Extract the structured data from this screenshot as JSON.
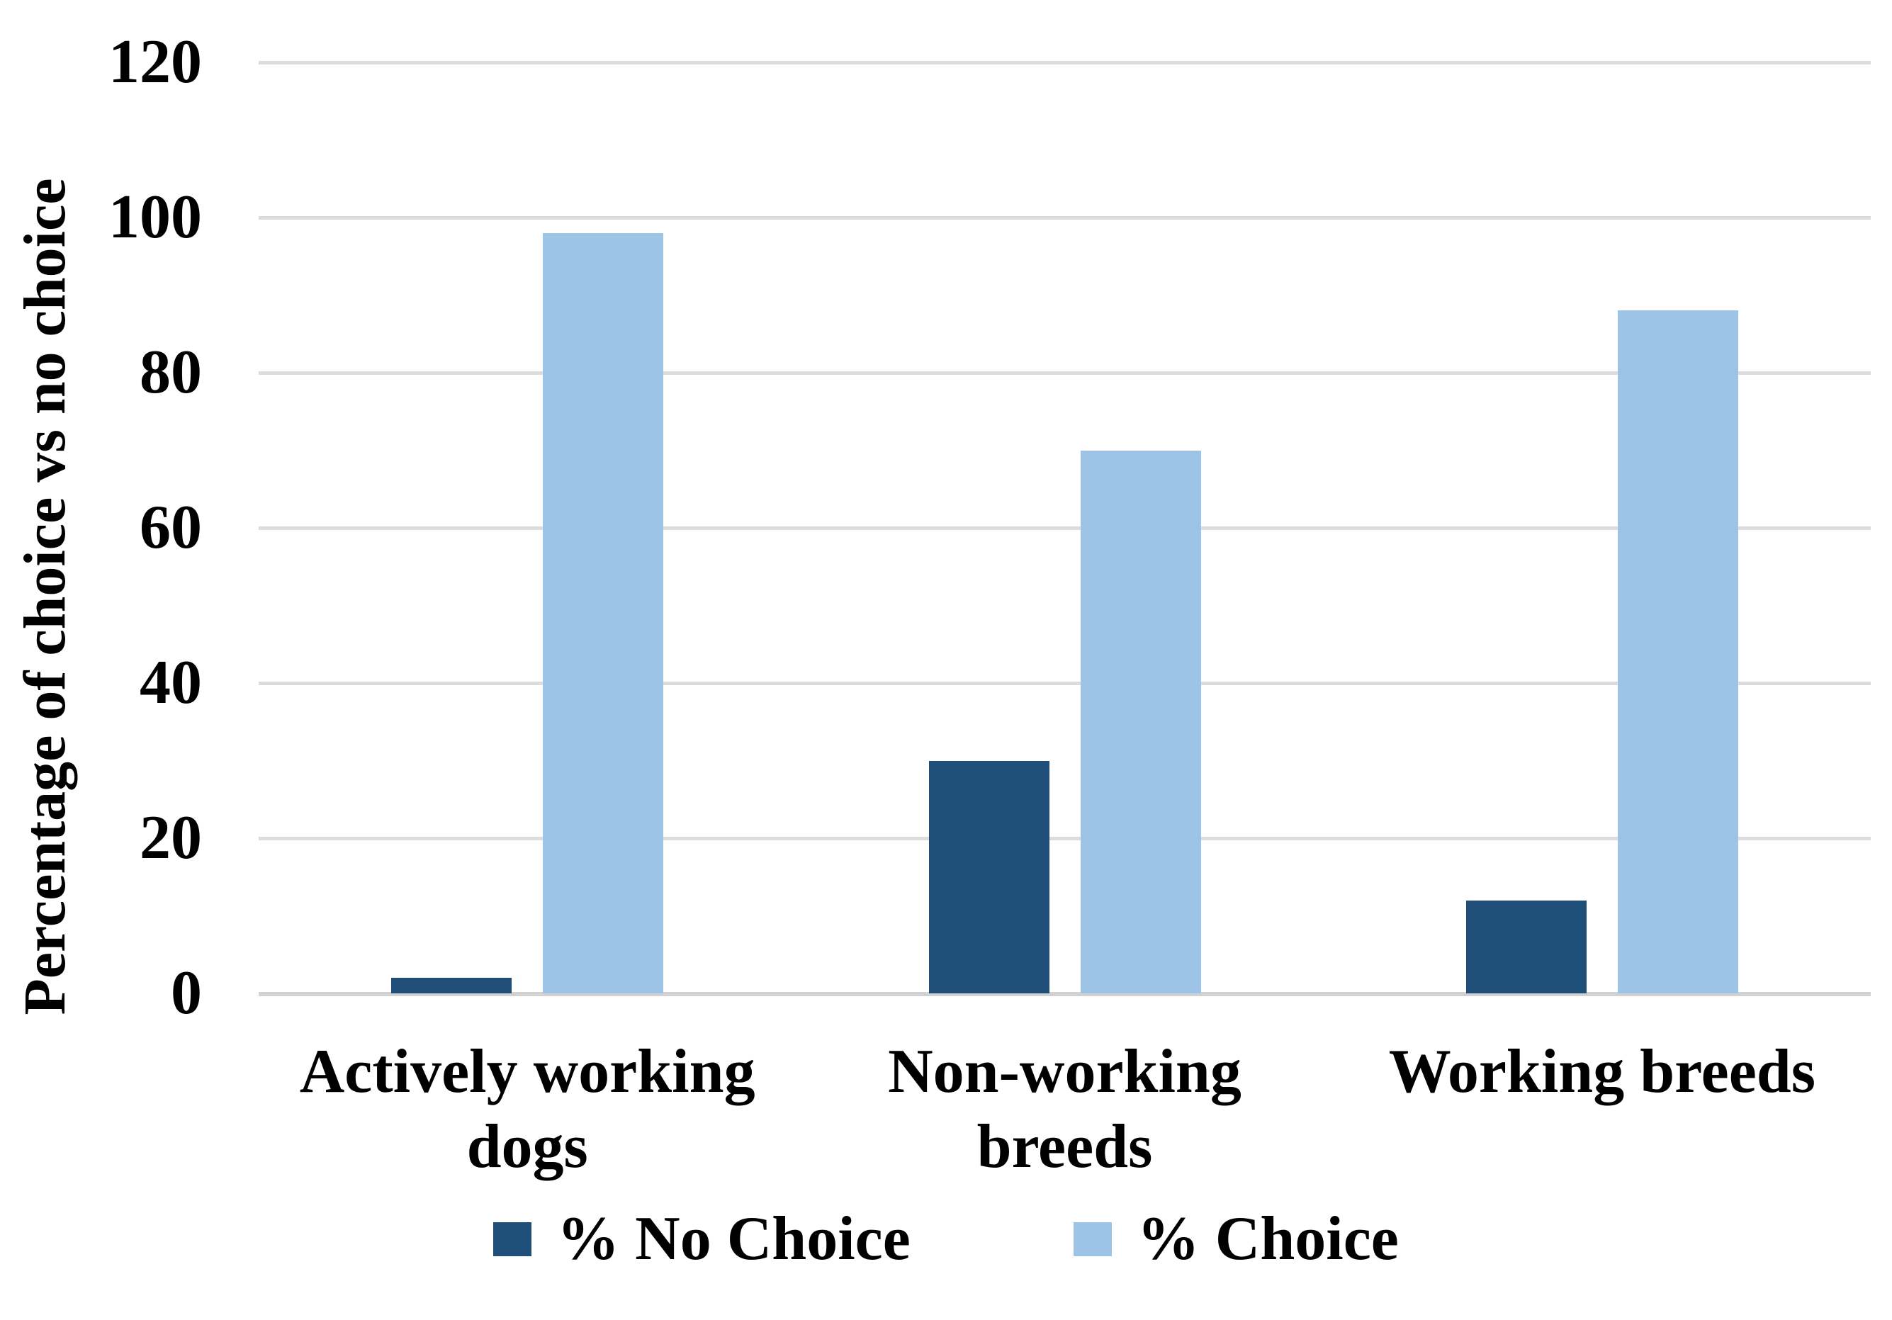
{
  "chart_data": {
    "type": "bar",
    "title": "",
    "categories": [
      "Actively working dogs",
      "Non-working breeds",
      "Working breeds"
    ],
    "series": [
      {
        "name": "% No Choice",
        "color": "#1F4E79",
        "values": [
          2,
          30,
          12
        ]
      },
      {
        "name": "% Choice",
        "color": "#9DC3E6",
        "values": [
          98,
          70,
          88
        ]
      }
    ],
    "ylabel": "Percentage of choice vs no choice",
    "xlabel": "",
    "ylim": [
      0,
      120
    ],
    "yticks": [
      0,
      20,
      40,
      60,
      80,
      100,
      120
    ],
    "grid": true,
    "gridline_color": "#DCDCDC",
    "background": "#FFFFFF",
    "legend_position": "bottom"
  }
}
